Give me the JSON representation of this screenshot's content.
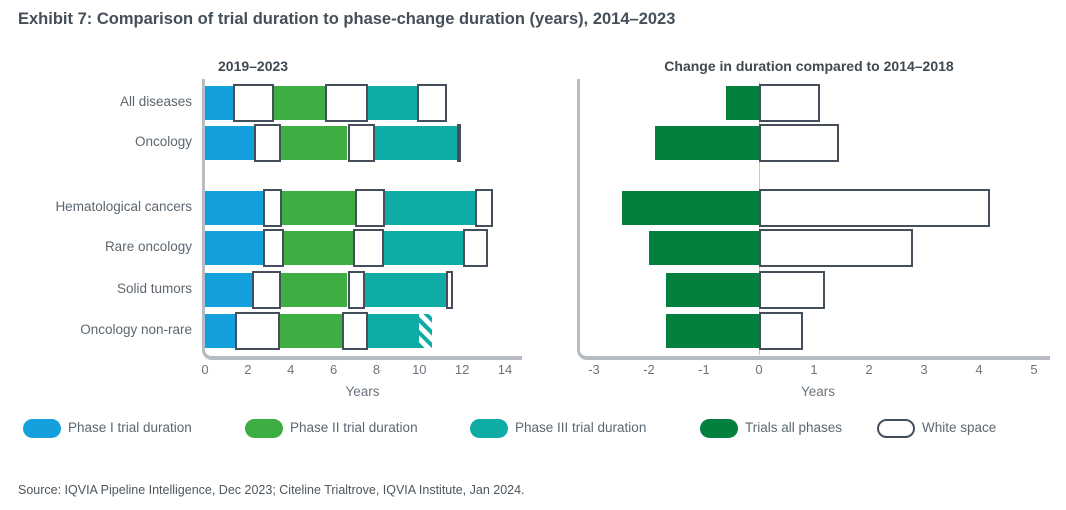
{
  "title": "Exhibit 7: Comparison of trial duration to phase-change duration (years), 2014–2023",
  "source": "Source: IQVIA Pipeline Intelligence, Dec 2023; Citeline Trialtrove, IQVIA Institute, Jan 2024.",
  "colors": {
    "phase1": "#14a0dc",
    "phase2": "#3fae42",
    "phase3": "#0eaca4",
    "all_phases": "#03803d",
    "white_space_fill": "#ffffff",
    "white_space_border": "#454f5b",
    "axis_line": "#b6bcc1",
    "zero_line": "#c6cacd",
    "text_gray": "#5c6770",
    "title_text": "#454f59"
  },
  "legend": [
    {
      "label": "Phase I trial duration",
      "swatch": "phase1"
    },
    {
      "label": "Phase II trial duration",
      "swatch": "phase2"
    },
    {
      "label": "Phase III trial duration",
      "swatch": "phase3"
    },
    {
      "label": "Trials all phases",
      "swatch": "all_phases"
    },
    {
      "label": "White space",
      "swatch": "white_space"
    }
  ],
  "chart_data": [
    {
      "type": "bar",
      "subtype": "horizontal-stacked",
      "title": "2019–2023",
      "xlabel": "Years",
      "xlim": [
        0,
        14
      ],
      "xticks": [
        0,
        2,
        4,
        6,
        8,
        10,
        12,
        14
      ],
      "grid": false,
      "categories": [
        "All diseases",
        "Oncology",
        "Hematological cancers",
        "Rare oncology",
        "Solid tumors",
        "Oncology non-rare"
      ],
      "series": [
        {
          "key": "phase1",
          "name": "Phase I trial duration",
          "values": [
            1.3,
            2.3,
            2.7,
            2.7,
            2.2,
            1.4
          ]
        },
        {
          "key": "ws1",
          "name": "White space after Phase I",
          "values": [
            1.9,
            1.25,
            0.9,
            1.0,
            1.35,
            2.1
          ]
        },
        {
          "key": "phase2",
          "name": "Phase II trial duration",
          "values": [
            2.4,
            3.1,
            3.4,
            3.2,
            3.1,
            2.9
          ]
        },
        {
          "key": "ws2",
          "name": "White space after Phase II",
          "values": [
            2.0,
            1.3,
            1.4,
            1.45,
            0.8,
            1.2
          ]
        },
        {
          "key": "phase3",
          "name": "Phase III trial duration",
          "values": [
            2.3,
            3.8,
            4.2,
            3.7,
            3.8,
            2.4
          ]
        },
        {
          "key": "ws3",
          "name": "White space after Phase III",
          "values": [
            1.4,
            0.2,
            0.85,
            1.15,
            0.3,
            0
          ]
        },
        {
          "key": "phase3_hatched",
          "name": "Phase III trial duration (hatched estimate)",
          "values": [
            0,
            0,
            0,
            0,
            0,
            0.6
          ]
        }
      ],
      "totals": [
        11.3,
        12.05,
        13.45,
        13.2,
        11.55,
        10.6
      ]
    },
    {
      "type": "bar",
      "subtype": "horizontal-diverging",
      "title": "Change in duration compared to 2014–2018",
      "xlabel": "Years",
      "xlim": [
        -3,
        5
      ],
      "xticks": [
        -3,
        -2,
        -1,
        0,
        1,
        2,
        3,
        4,
        5
      ],
      "grid": false,
      "categories": [
        "All diseases",
        "Oncology",
        "Hematological cancers",
        "Rare oncology",
        "Solid tumors",
        "Oncology non-rare"
      ],
      "series": [
        {
          "key": "all_phases",
          "name": "Trials all phases",
          "values": [
            -0.6,
            -1.9,
            -2.5,
            -2.0,
            -1.7,
            -1.7
          ]
        },
        {
          "key": "white_space",
          "name": "White space",
          "values": [
            1.1,
            1.45,
            4.2,
            2.8,
            1.2,
            0.8
          ]
        }
      ]
    }
  ]
}
